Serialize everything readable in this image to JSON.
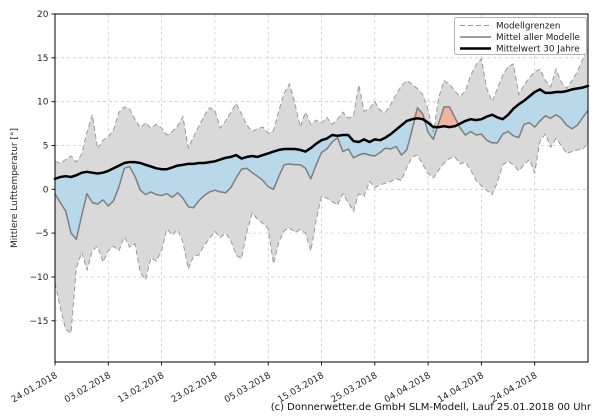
{
  "figure": {
    "caption": "(c) Donnerwetter.de GmbH SLM-Modell, Lauf 25.01.2018 00 Uhr",
    "y_axis": {
      "label": "Mittlere Lufttemperatur [°]",
      "tick_values": [
        20,
        15,
        10,
        5,
        0,
        -5,
        -10,
        -15
      ],
      "tick_labels": [
        "20",
        "15",
        "10",
        "5",
        "0",
        "−5",
        "−10",
        "−15"
      ]
    },
    "x_axis": {
      "tick_days": [
        0,
        10,
        20,
        30,
        40,
        50,
        60,
        70,
        80,
        90
      ],
      "tick_labels": [
        "24.01.2018",
        "03.02.2018",
        "13.02.2018",
        "23.02.2018",
        "05.03.2018",
        "15.03.2018",
        "25.03.2018",
        "04.04.2018",
        "14.04.2018",
        "24.04.2018"
      ]
    },
    "legend": [
      {
        "label": "Modellgrenzen",
        "style": "dashed-gray"
      },
      {
        "label": "Mittel aller Modelle",
        "style": "solid-gray"
      },
      {
        "label": "Mittelwert 30 Jahre",
        "style": "solid-black-thick"
      }
    ]
  },
  "colors": {
    "band": "#d9d9d9",
    "bounds_line": "#999999",
    "model_mean_line": "#7f7f7f",
    "mean30_line": "#000000",
    "cooler_fill": "#b9d8e9",
    "warmer_fill": "#f2b4a1",
    "grid": "#cccccc"
  },
  "chart_data": {
    "type": "line",
    "title": "",
    "xlabel": "",
    "ylabel": "Mittlere Lufttemperatur [°]",
    "ylim": [
      -19.7,
      20
    ],
    "grid": true,
    "legend_position": "upper right",
    "x": {
      "day0_date": "24.01.2018",
      "step_days": 1,
      "count": 101,
      "last_date_approx": "04.05.2018"
    },
    "series": [
      {
        "name": "Modellgrenze oben (Modellgrenzen)",
        "role": "upper_bound",
        "values": [
          3.2,
          3.0,
          3.4,
          3.8,
          3.1,
          4.0,
          6.5,
          8.5,
          4.6,
          5.6,
          6.0,
          6.8,
          8.8,
          9.4,
          9.2,
          8.0,
          7.0,
          7.6,
          7.0,
          7.4,
          7.0,
          6.2,
          6.6,
          7.2,
          8.3,
          4.7,
          6.0,
          7.2,
          8.4,
          9.3,
          9.0,
          7.0,
          7.8,
          8.8,
          9.8,
          8.6,
          7.3,
          6.6,
          6.9,
          7.1,
          6.4,
          6.7,
          9.0,
          11.0,
          12.0,
          9.8,
          7.1,
          8.8,
          7.4,
          7.9,
          7.6,
          8.2,
          7.4,
          8.0,
          8.8,
          8.1,
          8.4,
          11.9,
          8.9,
          9.2,
          10.0,
          9.0,
          8.8,
          9.7,
          10.8,
          11.8,
          12.4,
          12.0,
          11.5,
          10.8,
          9.0,
          6.5,
          10.5,
          12.4,
          12.0,
          11.2,
          10.6,
          11.2,
          13.0,
          14.2,
          14.9,
          11.5,
          10.0,
          11.5,
          13.0,
          14.0,
          14.3,
          10.8,
          11.9,
          12.7,
          13.4,
          13.7,
          12.4,
          11.7,
          13.7,
          12.2,
          11.5,
          12.4,
          13.4,
          14.8,
          16.2
        ]
      },
      {
        "name": "Modellgrenze unten (Modellgrenzen)",
        "role": "lower_bound",
        "values": [
          -10.7,
          -13.5,
          -16.0,
          -16.4,
          -9.0,
          -7.2,
          -9.2,
          -7.0,
          -6.5,
          -8.3,
          -7.0,
          -6.5,
          -7.0,
          -5.4,
          -6.6,
          -6.2,
          -9.5,
          -10.3,
          -7.8,
          -8.2,
          -7.0,
          -4.5,
          -5.2,
          -4.6,
          -6.0,
          -9.1,
          -7.6,
          -7.5,
          -6.4,
          -5.6,
          -4.8,
          -5.5,
          -5.0,
          -5.9,
          -7.5,
          -7.9,
          -4.8,
          -2.7,
          -3.4,
          -3.9,
          -4.5,
          -8.5,
          -6.0,
          -4.7,
          -4.4,
          -4.9,
          -4.6,
          -5.0,
          -7.0,
          -3.5,
          -0.8,
          -1.0,
          -1.4,
          -1.8,
          -0.5,
          -1.5,
          -2.5,
          -0.5,
          -0.8,
          0.9,
          0.2,
          0.5,
          0.7,
          0.9,
          1.2,
          1.0,
          2.5,
          3.7,
          3.9,
          2.8,
          1.8,
          1.3,
          2.2,
          3.0,
          3.5,
          3.7,
          2.9,
          3.1,
          2.2,
          1.0,
          0.4,
          -0.1,
          -0.6,
          0.8,
          2.8,
          3.2,
          2.8,
          2.1,
          2.8,
          3.4,
          1.9,
          5.5,
          6.3,
          4.8,
          5.8,
          5.0,
          4.1,
          4.3,
          4.5,
          4.6,
          5.2
        ]
      },
      {
        "name": "Mittel aller Modelle",
        "role": "model_mean",
        "values": [
          -0.5,
          -1.5,
          -2.5,
          -5.0,
          -5.7,
          -3.0,
          -0.5,
          -1.5,
          -1.7,
          -1.2,
          -1.9,
          -1.3,
          0.3,
          2.4,
          2.6,
          1.5,
          -0.1,
          -0.6,
          -0.3,
          -0.6,
          -0.7,
          -0.5,
          -0.9,
          -0.4,
          -1.0,
          -2.0,
          -2.1,
          -1.3,
          -0.7,
          -0.3,
          -0.1,
          -0.3,
          -0.4,
          0.2,
          1.3,
          2.3,
          2.4,
          1.9,
          1.5,
          1.0,
          0.3,
          0.0,
          1.5,
          2.8,
          2.9,
          2.8,
          2.8,
          2.4,
          1.2,
          2.8,
          4.2,
          4.6,
          5.4,
          5.9,
          4.3,
          4.6,
          3.6,
          3.9,
          4.1,
          3.9,
          3.8,
          4.2,
          4.7,
          4.6,
          4.9,
          3.9,
          4.5,
          6.8,
          9.3,
          8.6,
          6.5,
          5.7,
          7.6,
          9.4,
          9.4,
          8.2,
          7.0,
          6.2,
          6.6,
          6.2,
          6.3,
          5.6,
          5.3,
          5.3,
          6.3,
          6.6,
          6.1,
          5.9,
          7.4,
          7.6,
          7.1,
          7.8,
          8.4,
          8.1,
          8.5,
          8.1,
          7.3,
          6.9,
          7.3,
          8.2,
          9.0
        ]
      },
      {
        "name": "Mittelwert 30 Jahre",
        "role": "climate_mean_30y",
        "values": [
          1.2,
          1.4,
          1.5,
          1.4,
          1.6,
          1.9,
          2.0,
          1.9,
          1.8,
          1.9,
          2.1,
          2.4,
          2.7,
          3.0,
          3.1,
          3.1,
          3.0,
          2.8,
          2.6,
          2.4,
          2.3,
          2.3,
          2.5,
          2.7,
          2.8,
          2.9,
          2.9,
          3.0,
          3.0,
          3.1,
          3.2,
          3.4,
          3.6,
          3.7,
          3.9,
          3.5,
          3.7,
          3.8,
          3.7,
          3.9,
          4.1,
          4.3,
          4.5,
          4.6,
          4.6,
          4.6,
          4.5,
          4.3,
          4.7,
          5.2,
          5.6,
          5.8,
          6.2,
          6.1,
          6.2,
          6.2,
          5.5,
          5.4,
          5.7,
          5.4,
          5.7,
          5.6,
          5.9,
          6.3,
          6.8,
          7.3,
          7.8,
          8.0,
          8.1,
          8.0,
          7.6,
          7.1,
          7.1,
          7.2,
          7.1,
          7.2,
          7.5,
          7.8,
          8.0,
          7.9,
          8.0,
          8.3,
          8.5,
          8.2,
          8.0,
          8.5,
          9.2,
          9.7,
          10.1,
          10.6,
          11.1,
          11.4,
          11.0,
          11.0,
          11.1,
          11.1,
          11.2,
          11.4,
          11.5,
          11.6,
          11.8
        ]
      }
    ],
    "fills": [
      {
        "name": "Modellgrenzen-Band",
        "between": [
          "upper_bound",
          "lower_bound"
        ],
        "color_key": "band"
      },
      {
        "name": "kaelter als 30-Jahre-Mittel",
        "between": [
          "climate_mean_30y",
          "model_mean"
        ],
        "where": "model_mean < climate_mean_30y",
        "color_key": "cooler_fill"
      },
      {
        "name": "waermer als 30-Jahre-Mittel",
        "between": [
          "model_mean",
          "climate_mean_30y"
        ],
        "where": "model_mean > climate_mean_30y",
        "color_key": "warmer_fill"
      }
    ]
  }
}
